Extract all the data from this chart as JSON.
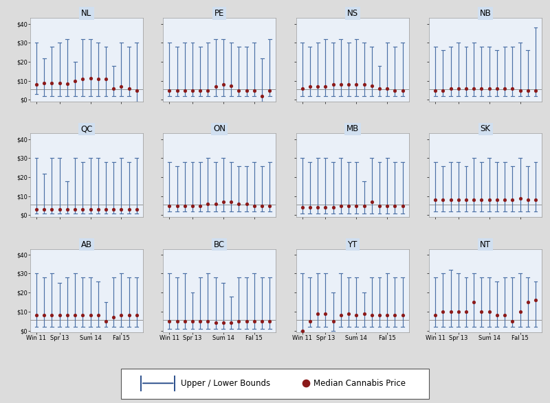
{
  "provinces": [
    "NL",
    "PE",
    "NS",
    "NB",
    "QC",
    "ON",
    "MB",
    "SK",
    "AB",
    "BC",
    "YT",
    "NT"
  ],
  "x_tick_labels": [
    "Win 11",
    "Spr 13",
    "Sum 14",
    "Fal 15"
  ],
  "ylim": [
    -1,
    43
  ],
  "yticks": [
    0,
    10,
    20,
    30,
    40
  ],
  "yticklabels": [
    "$0",
    "$10",
    "$20",
    "$30",
    "$40"
  ],
  "ref_line": 5.5,
  "dot_color": "#8B1A1A",
  "bar_color": "#4A6FA5",
  "title_bg_color": "#D0DFF0",
  "subplot_bg_color": "#EAF0F8",
  "outer_bg_color": "#E8E8E8",
  "figure_bg": "#DCDCDC",
  "n_points": 14,
  "legend_line_color": "#2B4F8C",
  "data": {
    "NL": {
      "median": [
        8,
        9,
        9,
        9,
        8.5,
        10,
        11,
        11.5,
        11,
        11,
        6,
        7,
        6,
        5
      ],
      "upper": [
        30,
        22,
        28,
        30,
        32,
        20,
        32,
        32,
        30,
        28,
        18,
        30,
        28,
        30
      ],
      "lower": [
        3,
        2,
        2,
        2,
        2,
        2,
        2,
        2,
        2,
        2,
        2,
        2,
        2,
        -1
      ]
    },
    "PE": {
      "median": [
        5,
        5,
        5,
        5,
        5,
        5,
        7,
        8,
        7.5,
        5,
        5,
        5,
        2,
        5
      ],
      "upper": [
        30,
        28,
        30,
        30,
        28,
        30,
        32,
        32,
        30,
        28,
        28,
        30,
        22,
        32
      ],
      "lower": [
        2,
        2,
        2,
        2,
        2,
        2,
        2,
        2,
        2,
        2,
        2,
        2,
        -1,
        2
      ]
    },
    "NS": {
      "median": [
        6,
        7,
        7,
        7,
        8,
        8,
        8,
        8,
        8,
        7.5,
        6,
        6,
        5,
        5
      ],
      "upper": [
        30,
        28,
        30,
        32,
        30,
        32,
        30,
        32,
        30,
        28,
        18,
        30,
        28,
        30
      ],
      "lower": [
        2,
        2,
        2,
        2,
        2,
        2,
        2,
        2,
        2,
        2,
        2,
        2,
        2,
        2
      ]
    },
    "NB": {
      "median": [
        5,
        5,
        6,
        6,
        6,
        6,
        6,
        6,
        6,
        6,
        6,
        5,
        5,
        5
      ],
      "upper": [
        28,
        26,
        28,
        30,
        28,
        30,
        28,
        28,
        26,
        28,
        28,
        30,
        26,
        38
      ],
      "lower": [
        2,
        2,
        2,
        2,
        2,
        2,
        2,
        2,
        2,
        2,
        2,
        2,
        2,
        2
      ]
    },
    "QC": {
      "median": [
        3,
        3,
        3,
        3,
        3,
        3,
        3,
        3,
        3,
        3,
        3,
        3,
        3,
        3
      ],
      "upper": [
        30,
        22,
        30,
        30,
        18,
        30,
        28,
        30,
        30,
        28,
        28,
        30,
        28,
        30
      ],
      "lower": [
        1,
        1,
        1,
        1,
        1,
        1,
        1,
        1,
        1,
        1,
        1,
        1,
        1,
        1
      ]
    },
    "ON": {
      "median": [
        5,
        5,
        5,
        5,
        5,
        6,
        6,
        7,
        7,
        6,
        6,
        5,
        5,
        5
      ],
      "upper": [
        28,
        26,
        28,
        28,
        28,
        30,
        28,
        30,
        28,
        26,
        26,
        28,
        26,
        28
      ],
      "lower": [
        2,
        2,
        2,
        2,
        2,
        2,
        2,
        2,
        2,
        2,
        2,
        2,
        2,
        2
      ]
    },
    "MB": {
      "median": [
        4,
        4,
        4,
        4,
        4,
        5,
        5,
        5,
        5,
        7,
        5,
        5,
        5,
        5
      ],
      "upper": [
        30,
        28,
        30,
        30,
        28,
        30,
        28,
        28,
        18,
        30,
        28,
        30,
        28,
        28
      ],
      "lower": [
        1,
        1,
        1,
        1,
        1,
        1,
        1,
        1,
        1,
        1,
        1,
        1,
        1,
        1
      ]
    },
    "SK": {
      "median": [
        8,
        8,
        8,
        8,
        8,
        8,
        8,
        8,
        8,
        8,
        8,
        9,
        8,
        8
      ],
      "upper": [
        28,
        26,
        28,
        28,
        26,
        30,
        28,
        30,
        28,
        28,
        26,
        30,
        26,
        28
      ],
      "lower": [
        2,
        2,
        2,
        2,
        2,
        2,
        2,
        2,
        2,
        2,
        2,
        2,
        2,
        2
      ]
    },
    "AB": {
      "median": [
        8,
        8,
        8,
        8,
        8,
        8,
        8,
        8,
        8,
        5,
        7,
        8,
        8,
        8
      ],
      "upper": [
        30,
        28,
        30,
        25,
        28,
        30,
        28,
        28,
        26,
        15,
        28,
        30,
        28,
        28
      ],
      "lower": [
        2,
        2,
        2,
        2,
        2,
        2,
        2,
        2,
        2,
        2,
        2,
        2,
        2,
        2
      ]
    },
    "BC": {
      "median": [
        5,
        5,
        5,
        5,
        5,
        5,
        4,
        4,
        4,
        5,
        5,
        5,
        5,
        5
      ],
      "upper": [
        30,
        28,
        30,
        20,
        28,
        30,
        28,
        25,
        18,
        28,
        28,
        30,
        28,
        28
      ],
      "lower": [
        1,
        1,
        1,
        1,
        1,
        1,
        1,
        1,
        1,
        1,
        1,
        1,
        1,
        1
      ]
    },
    "YT": {
      "median": [
        0,
        5,
        9,
        9,
        5,
        8,
        9,
        8,
        9,
        8,
        8,
        8,
        8,
        8
      ],
      "upper": [
        30,
        28,
        30,
        30,
        20,
        30,
        28,
        28,
        20,
        28,
        28,
        30,
        28,
        28
      ],
      "lower": [
        0,
        2,
        2,
        2,
        0,
        2,
        2,
        2,
        2,
        2,
        2,
        2,
        2,
        2
      ]
    },
    "NT": {
      "median": [
        8,
        10,
        10,
        10,
        10,
        15,
        10,
        10,
        8,
        8,
        5,
        10,
        15,
        16
      ],
      "upper": [
        28,
        30,
        32,
        30,
        28,
        30,
        28,
        28,
        26,
        28,
        28,
        30,
        28,
        26
      ],
      "lower": [
        2,
        2,
        2,
        2,
        2,
        2,
        2,
        2,
        2,
        2,
        2,
        2,
        2,
        2
      ]
    }
  },
  "x_tick_positions": [
    0,
    3,
    7,
    11
  ]
}
